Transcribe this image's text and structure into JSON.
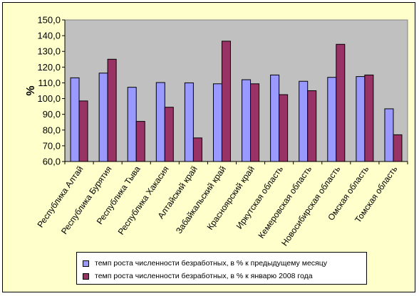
{
  "chart_data": {
    "type": "bar",
    "title": "",
    "xlabel": "",
    "ylabel": "%",
    "ylim": [
      60,
      150
    ],
    "ytick_step": 10,
    "ytick_labels": [
      "60,0",
      "70,0",
      "80,0",
      "90,0",
      "100,0",
      "110,0",
      "120,0",
      "130,0",
      "140,0",
      "150,0"
    ],
    "grid": false,
    "legend_position": "bottom",
    "categories": [
      "Республика Алтай",
      "Республика Бурятия",
      "Республика Тыва",
      "Республика Хакасия",
      "Алтайский край",
      "Забайкальский край",
      "Красноярский край",
      "Иркутская область",
      "Кемеровская область",
      "Новосибирская область",
      "Омская область",
      "Томская область"
    ],
    "series": [
      {
        "name": "темп роста численности безработных, в % к предыдущему месяцу",
        "color": "#9999ff",
        "values": [
          113.2,
          116.2,
          107.2,
          110.2,
          110.0,
          109.4,
          112.0,
          115.0,
          111.0,
          113.5,
          114.0,
          93.5
        ]
      },
      {
        "name": "темп роста численности безработных, в % к январю 2008 года",
        "color": "#993366",
        "values": [
          98.5,
          125.0,
          85.5,
          94.5,
          75.0,
          136.5,
          109.4,
          102.5,
          105.0,
          134.5,
          115.0,
          77.0
        ]
      }
    ]
  }
}
